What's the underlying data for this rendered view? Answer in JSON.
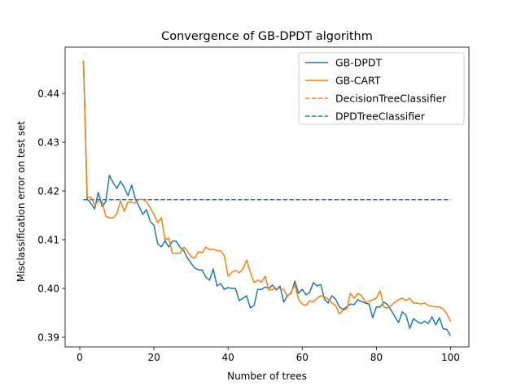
{
  "chart_data": {
    "type": "line",
    "title": "Convergence of GB-DPDT algorithm",
    "xlabel": "Number of trees",
    "ylabel": "Misclassification error on test set",
    "xlim": [
      -3.95,
      104.95
    ],
    "ylim": [
      0.388,
      0.4495
    ],
    "xticks": [
      0,
      20,
      40,
      60,
      80,
      100
    ],
    "yticks": [
      0.39,
      0.4,
      0.41,
      0.42,
      0.43,
      0.44
    ],
    "ytick_labels": [
      "0.39",
      "0.40",
      "0.41",
      "0.42",
      "0.43",
      "0.44"
    ],
    "legend_position": "top-right",
    "grid": false,
    "series": [
      {
        "name": "GB-DPDT",
        "style": "solid",
        "color": "#1f77b4",
        "x": [
          1,
          2,
          3,
          4,
          5,
          6,
          7,
          8,
          9,
          10,
          11,
          12,
          13,
          14,
          15,
          16,
          17,
          18,
          19,
          20,
          21,
          22,
          23,
          24,
          25,
          26,
          27,
          28,
          29,
          30,
          31,
          32,
          33,
          34,
          35,
          36,
          37,
          38,
          39,
          40,
          41,
          42,
          43,
          44,
          45,
          46,
          47,
          48,
          49,
          50,
          51,
          52,
          53,
          54,
          55,
          56,
          57,
          58,
          59,
          60,
          61,
          62,
          63,
          64,
          65,
          66,
          67,
          68,
          69,
          70,
          71,
          72,
          73,
          74,
          75,
          76,
          77,
          78,
          79,
          80,
          81,
          82,
          83,
          84,
          85,
          86,
          87,
          88,
          89,
          90,
          91,
          92,
          93,
          94,
          95,
          96,
          97,
          98,
          99,
          100
        ],
        "y": [
          0.4467,
          0.4183,
          0.4175,
          0.4163,
          0.4197,
          0.4168,
          0.4178,
          0.4232,
          0.4217,
          0.4205,
          0.422,
          0.4207,
          0.419,
          0.4212,
          0.4183,
          0.4168,
          0.4152,
          0.4162,
          0.4137,
          0.413,
          0.4092,
          0.4085,
          0.4098,
          0.4085,
          0.4097,
          0.4097,
          0.4085,
          0.4078,
          0.4063,
          0.4052,
          0.4042,
          0.4038,
          0.4038,
          0.4023,
          0.4017,
          0.404,
          0.4005,
          0.401,
          0.3998,
          0.4002,
          0.4,
          0.4,
          0.3975,
          0.398,
          0.3985,
          0.396,
          0.3965,
          0.3998,
          0.3998,
          0.4003,
          0.4,
          0.4007,
          0.3997,
          0.4005,
          0.3972,
          0.3985,
          0.399,
          0.4015,
          0.399,
          0.3998,
          0.3987,
          0.3992,
          0.4012,
          0.4005,
          0.4008,
          0.3978,
          0.397,
          0.3985,
          0.3978,
          0.3962,
          0.3957,
          0.3962,
          0.3968,
          0.3967,
          0.3977,
          0.3973,
          0.397,
          0.3968,
          0.394,
          0.3962,
          0.3962,
          0.3972,
          0.3967,
          0.3955,
          0.3942,
          0.393,
          0.3952,
          0.3945,
          0.3918,
          0.3938,
          0.3932,
          0.3928,
          0.3933,
          0.3928,
          0.3942,
          0.3925,
          0.394,
          0.3917,
          0.3916,
          0.3903
        ]
      },
      {
        "name": "GB-CART",
        "style": "solid",
        "color": "#ff7f0e",
        "x": [
          1,
          2,
          3,
          4,
          5,
          6,
          7,
          8,
          9,
          10,
          11,
          12,
          13,
          14,
          15,
          16,
          17,
          18,
          19,
          20,
          21,
          22,
          23,
          24,
          25,
          26,
          27,
          28,
          29,
          30,
          31,
          32,
          33,
          34,
          35,
          36,
          37,
          38,
          39,
          40,
          41,
          42,
          43,
          44,
          45,
          46,
          47,
          48,
          49,
          50,
          51,
          52,
          53,
          54,
          55,
          56,
          57,
          58,
          59,
          60,
          61,
          62,
          63,
          64,
          65,
          66,
          67,
          68,
          69,
          70,
          71,
          72,
          73,
          74,
          75,
          76,
          77,
          78,
          79,
          80,
          81,
          82,
          83,
          84,
          85,
          86,
          87,
          88,
          89,
          90,
          91,
          92,
          93,
          94,
          95,
          96,
          97,
          98,
          99,
          100
        ],
        "y": [
          0.4467,
          0.4187,
          0.4187,
          0.4172,
          0.4178,
          0.418,
          0.4148,
          0.4145,
          0.4145,
          0.4153,
          0.418,
          0.4158,
          0.4177,
          0.4177,
          0.4175,
          0.4183,
          0.4183,
          0.4178,
          0.4165,
          0.4152,
          0.4135,
          0.4145,
          0.41,
          0.4103,
          0.4072,
          0.4072,
          0.4072,
          0.4085,
          0.4077,
          0.4065,
          0.4062,
          0.4075,
          0.4073,
          0.4085,
          0.408,
          0.408,
          0.4078,
          0.4077,
          0.4067,
          0.4025,
          0.4033,
          0.4037,
          0.4032,
          0.404,
          0.4058,
          0.4033,
          0.4012,
          0.4017,
          0.4013,
          0.4025,
          0.3997,
          0.3998,
          0.4,
          0.4,
          0.3998,
          0.3983,
          0.3992,
          0.4008,
          0.3978,
          0.3968,
          0.3965,
          0.3975,
          0.3972,
          0.398,
          0.3985,
          0.3983,
          0.3978,
          0.397,
          0.3965,
          0.3948,
          0.3955,
          0.3958,
          0.399,
          0.398,
          0.399,
          0.3985,
          0.3972,
          0.3973,
          0.3977,
          0.398,
          0.3995,
          0.3962,
          0.396,
          0.3965,
          0.3972,
          0.3977,
          0.398,
          0.3975,
          0.398,
          0.397,
          0.397,
          0.3968,
          0.397,
          0.3965,
          0.3963,
          0.3962,
          0.3962,
          0.3958,
          0.3948,
          0.3932
        ]
      },
      {
        "name": "DecisionTreeClassifier",
        "style": "dashed",
        "color": "#ff7f0e",
        "x": [
          1,
          100
        ],
        "y": [
          0.4182,
          0.4182
        ]
      },
      {
        "name": "DPDTreeClassifier",
        "style": "dashed",
        "color": "#1f77b4",
        "x": [
          1,
          100
        ],
        "y": [
          0.4182,
          0.4182
        ]
      }
    ]
  }
}
